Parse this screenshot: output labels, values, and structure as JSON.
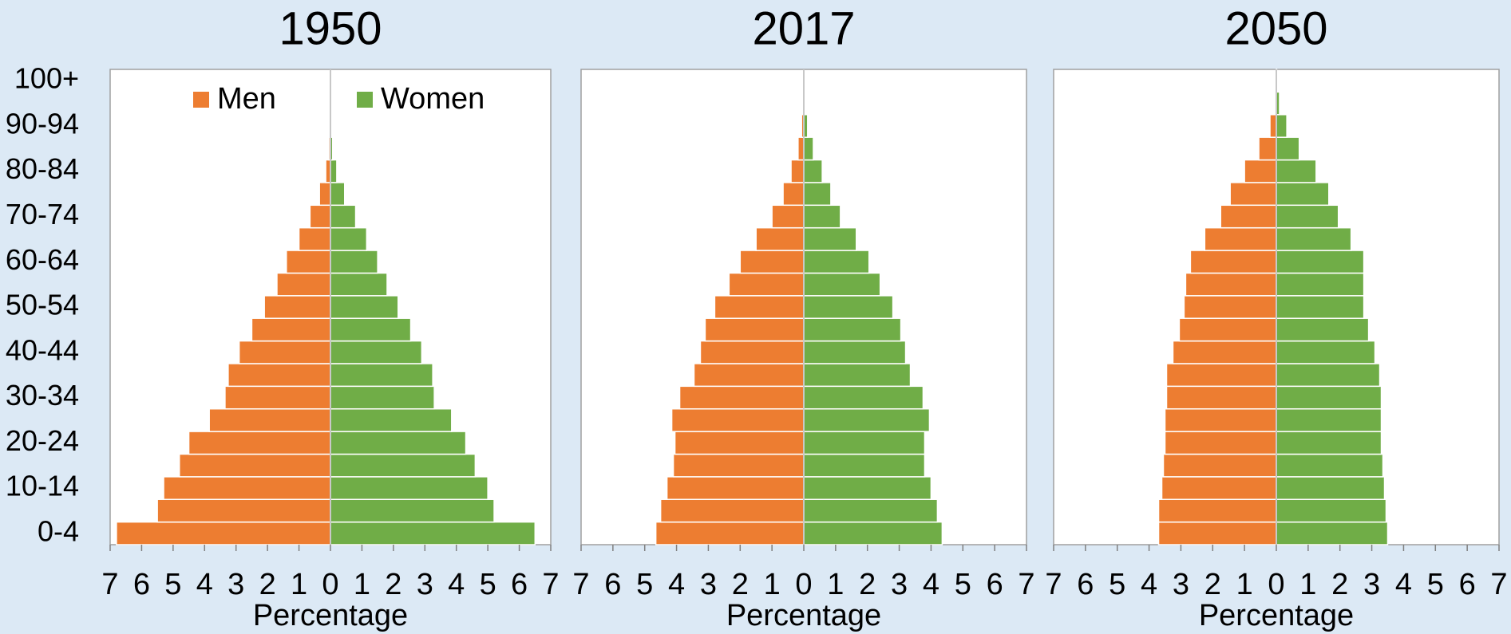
{
  "chart_data": [
    {
      "type": "bar",
      "title": "1950",
      "categories": [
        "0-4",
        null,
        "10-14",
        null,
        "20-24",
        null,
        "30-34",
        null,
        "40-44",
        null,
        "50-54",
        null,
        "60-64",
        null,
        "70-74",
        null,
        "80-84",
        null,
        "90-94",
        null,
        "100+"
      ],
      "series": [
        {
          "name": "Men",
          "color": "#ed7d31",
          "values": [
            -6.8,
            -5.5,
            -5.3,
            -4.8,
            -4.5,
            -3.85,
            -3.35,
            -3.25,
            -2.9,
            -2.5,
            -2.1,
            -1.7,
            -1.4,
            -1.0,
            -0.65,
            -0.35,
            -0.15,
            -0.05,
            -0.02,
            0,
            0
          ]
        },
        {
          "name": "Women",
          "color": "#70ad47",
          "values": [
            6.5,
            5.2,
            5.0,
            4.6,
            4.3,
            3.85,
            3.3,
            3.25,
            2.9,
            2.55,
            2.15,
            1.8,
            1.5,
            1.15,
            0.8,
            0.45,
            0.2,
            0.07,
            0.02,
            0,
            0
          ]
        }
      ],
      "xlabel": "Percentage",
      "xlim": [
        -7,
        7
      ],
      "xticks": [
        {
          "value": -7,
          "label": "7"
        },
        {
          "value": -6,
          "label": "6"
        },
        {
          "value": -5,
          "label": "5"
        },
        {
          "value": -4,
          "label": "4"
        },
        {
          "value": -3,
          "label": "3"
        },
        {
          "value": -2,
          "label": "2"
        },
        {
          "value": -1,
          "label": "1"
        },
        0,
        1,
        2,
        3,
        4,
        5,
        6,
        7
      ]
    },
    {
      "type": "bar",
      "title": "2017",
      "series": [
        {
          "color": "#ed7d31",
          "values": [
            -4.65,
            -4.5,
            -4.3,
            -4.1,
            -4.05,
            -4.15,
            -3.9,
            -3.45,
            -3.25,
            -3.1,
            -2.8,
            -2.35,
            -2.0,
            -1.5,
            -1.0,
            -0.65,
            -0.4,
            -0.18,
            -0.07,
            -0.01,
            0
          ]
        },
        {
          "color": "#70ad47",
          "values": [
            4.35,
            4.2,
            4.0,
            3.8,
            3.8,
            3.95,
            3.75,
            3.35,
            3.2,
            3.05,
            2.8,
            2.4,
            2.05,
            1.65,
            1.15,
            0.85,
            0.58,
            0.3,
            0.12,
            0.02,
            0
          ]
        }
      ],
      "xlabel": "Percentage",
      "xlim": [
        -7,
        7
      ],
      "xticks": [
        {
          "value": -7,
          "label": "7"
        },
        {
          "value": -6,
          "label": "6"
        },
        {
          "value": -5,
          "label": "5"
        },
        {
          "value": -4,
          "label": "4"
        },
        {
          "value": -3,
          "label": "3"
        },
        {
          "value": -2,
          "label": "2"
        },
        {
          "value": -1,
          "label": "1"
        },
        0,
        1,
        2,
        3,
        4,
        5,
        6,
        7
      ]
    },
    {
      "type": "bar",
      "title": "2050",
      "series": [
        {
          "color": "#ed7d31",
          "values": [
            -3.7,
            -3.7,
            -3.6,
            -3.55,
            -3.5,
            -3.5,
            -3.45,
            -3.45,
            -3.25,
            -3.05,
            -2.9,
            -2.85,
            -2.7,
            -2.25,
            -1.75,
            -1.45,
            -1.0,
            -0.55,
            -0.2,
            -0.03,
            0
          ]
        },
        {
          "color": "#70ad47",
          "values": [
            3.5,
            3.45,
            3.4,
            3.35,
            3.3,
            3.3,
            3.3,
            3.25,
            3.1,
            2.9,
            2.75,
            2.75,
            2.75,
            2.35,
            1.95,
            1.65,
            1.25,
            0.72,
            0.33,
            0.1,
            0.01
          ]
        }
      ],
      "xlabel": "Percentage",
      "xlim": [
        -7,
        7
      ],
      "xticks": [
        {
          "value": -7,
          "label": "7"
        },
        {
          "value": -6,
          "label": "6"
        },
        {
          "value": -5,
          "label": "5"
        },
        {
          "value": -4,
          "label": "4"
        },
        {
          "value": -3,
          "label": "3"
        },
        {
          "value": -2,
          "label": "2"
        },
        {
          "value": -1,
          "label": "1"
        },
        0,
        1,
        2,
        3,
        4,
        5,
        6,
        7
      ]
    }
  ]
}
